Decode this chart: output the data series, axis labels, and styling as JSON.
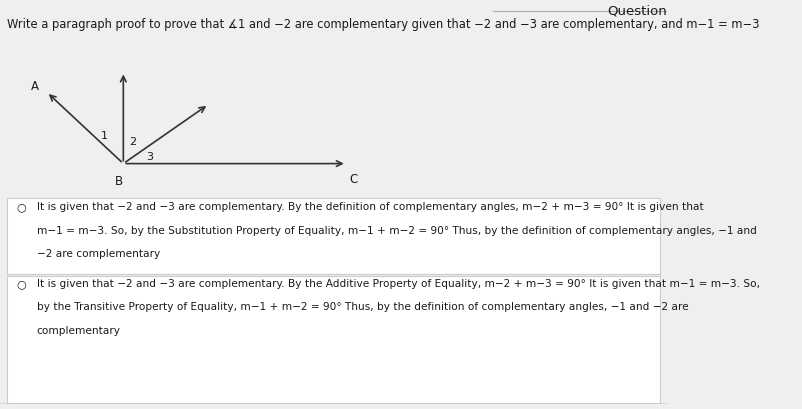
{
  "title": "Question",
  "question": "Write a paragraph proof to prove that ∡1 and −2 are complementary given that −2 and −3 are complementary, and m−1 = m−3",
  "option1_bullet": "○",
  "option1_text_lines": [
    "It is given that −2 and −3 are complementary. By the definition of complementary angles, m−2 + m−3 = 90° It is given that",
    "m−1 = m−3. So, by the Substitution Property of Equality, m−1 + m−2 = 90° Thus, by the definition of complementary angles, −1 and",
    "−2 are complementary"
  ],
  "option2_bullet": "○",
  "option2_text_lines": [
    "It is given that −2 and −3 are complementary. By the Additive Property of Equality, m−2 + m−3 = 90° It is given that m−1 = m−3. So,",
    "by the Transitive Property of Equality, m−1 + m−2 = 90° Thus, by the definition of complementary angles, −1 and −2 are",
    "complementary"
  ],
  "bg_color": "#efefef",
  "text_color": "#1a1a1a",
  "option1_bg": "#ffffff",
  "option2_bg": "#ffffff",
  "divider_color": "#cccccc",
  "title_line_color": "#aaaaaa",
  "font_size_question": 8.3,
  "font_size_text": 7.6,
  "font_size_title": 9.5,
  "ox": 0.185,
  "oy": 0.6
}
